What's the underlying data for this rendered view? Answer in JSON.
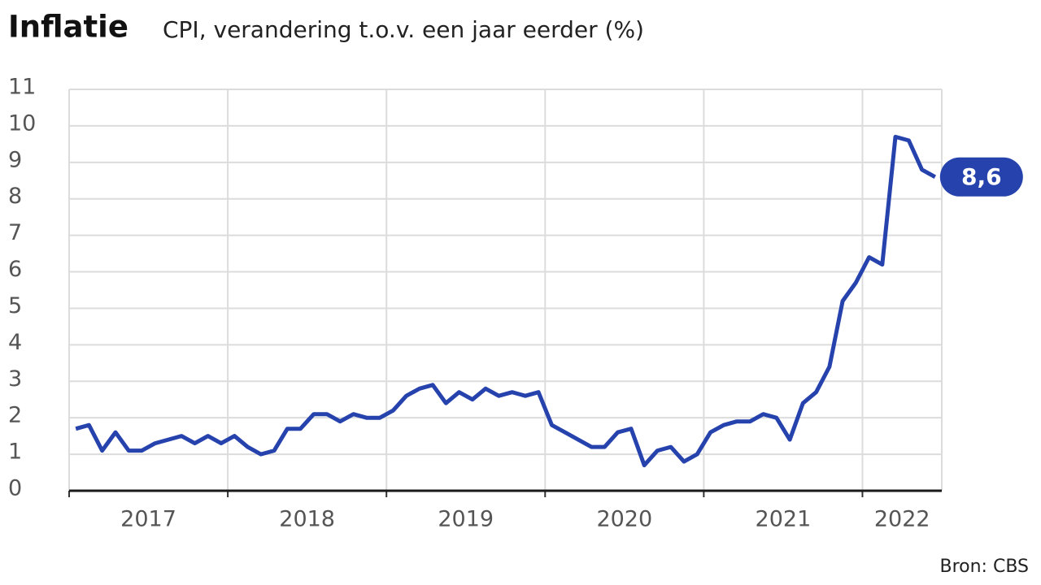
{
  "chart_data": {
    "type": "line",
    "title": "Inflatie",
    "subtitle": "CPI, verandering t.o.v. een jaar eerder (%)",
    "source": "Bron: CBS",
    "color": "#2542ad",
    "x": [
      2017.042,
      2017.125,
      2017.208,
      2017.292,
      2017.375,
      2017.458,
      2017.542,
      2017.625,
      2017.708,
      2017.792,
      2017.875,
      2017.958,
      2018.042,
      2018.125,
      2018.208,
      2018.292,
      2018.375,
      2018.458,
      2018.542,
      2018.625,
      2018.708,
      2018.792,
      2018.875,
      2018.958,
      2019.042,
      2019.125,
      2019.208,
      2019.292,
      2019.375,
      2019.458,
      2019.542,
      2019.625,
      2019.708,
      2019.792,
      2019.875,
      2019.958,
      2020.042,
      2020.125,
      2020.208,
      2020.292,
      2020.375,
      2020.458,
      2020.542,
      2020.625,
      2020.708,
      2020.792,
      2020.875,
      2020.958,
      2021.042,
      2021.125,
      2021.208,
      2021.292,
      2021.375,
      2021.458,
      2021.542,
      2021.625,
      2021.708,
      2021.792,
      2021.875,
      2021.958,
      2022.042,
      2022.125,
      2022.208,
      2022.292,
      2022.375,
      2022.458
    ],
    "values": [
      1.7,
      1.8,
      1.1,
      1.6,
      1.1,
      1.1,
      1.3,
      1.4,
      1.5,
      1.3,
      1.5,
      1.3,
      1.5,
      1.2,
      1.0,
      1.1,
      1.7,
      1.7,
      2.1,
      2.1,
      1.9,
      2.1,
      2.0,
      2.0,
      2.2,
      2.6,
      2.8,
      2.9,
      2.4,
      2.7,
      2.5,
      2.8,
      2.6,
      2.7,
      2.6,
      2.7,
      1.8,
      1.6,
      1.4,
      1.2,
      1.2,
      1.6,
      1.7,
      0.7,
      1.1,
      1.2,
      0.8,
      1.0,
      1.6,
      1.8,
      1.9,
      1.9,
      2.1,
      2.0,
      1.4,
      2.4,
      2.7,
      3.4,
      5.2,
      5.7,
      6.4,
      6.2,
      9.7,
      9.6,
      8.8,
      8.6
    ],
    "value_labels": [
      null,
      null,
      null,
      null,
      null,
      null,
      null,
      null,
      null,
      null,
      null,
      null,
      null,
      null,
      null,
      null,
      null,
      null,
      null,
      null,
      null,
      null,
      null,
      null,
      null,
      null,
      null,
      null,
      null,
      null,
      null,
      null,
      null,
      null,
      null,
      null,
      null,
      null,
      null,
      null,
      null,
      null,
      null,
      null,
      null,
      null,
      null,
      null,
      null,
      null,
      null,
      null,
      null,
      null,
      null,
      null,
      null,
      null,
      null,
      null,
      null,
      null,
      null,
      null,
      null,
      "8,6"
    ],
    "xlim": [
      2017,
      2022.5
    ],
    "xticks": [
      {
        "value": 2017,
        "label": "2017"
      },
      {
        "value": 2018,
        "label": "2018"
      },
      {
        "value": 2019,
        "label": "2019"
      },
      {
        "value": 2020,
        "label": "2020"
      },
      {
        "value": 2021,
        "label": "2021"
      },
      {
        "value": 2022,
        "label": "2022"
      }
    ],
    "ylim": [
      0,
      11
    ],
    "yticks": [
      0,
      1,
      2,
      3,
      4,
      5,
      6,
      7,
      8,
      9,
      10,
      11
    ],
    "grid": true
  }
}
